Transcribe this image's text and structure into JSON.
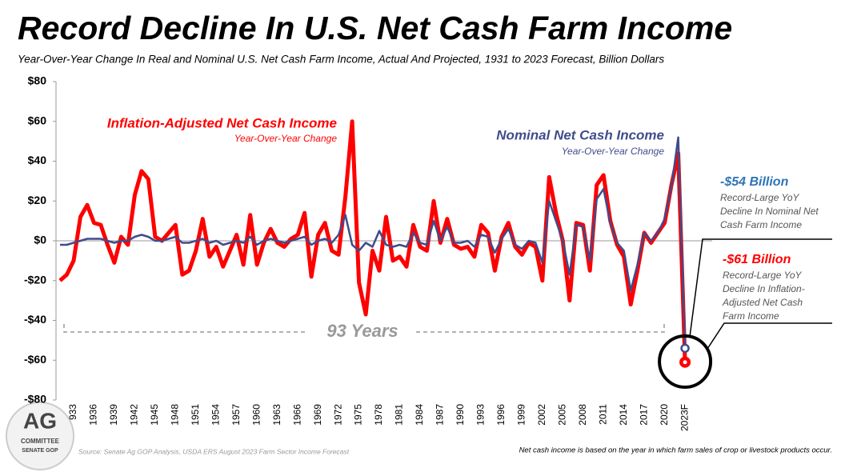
{
  "chart_data": {
    "type": "line",
    "title": "Record Decline In U.S. Net Cash Farm Income",
    "subtitle": "Year-Over-Year Change In Real and Nominal U.S. Net Cash Farm Income, Actual And Projected, 1931 to 2023 Forecast, Billion Dollars",
    "categories": [
      null,
      null,
      "933",
      null,
      null,
      "1936",
      null,
      null,
      "1939",
      null,
      null,
      "1942",
      null,
      null,
      "1945",
      null,
      null,
      "1948",
      null,
      null,
      "1951",
      null,
      null,
      "1954",
      null,
      null,
      "1957",
      null,
      null,
      "1960",
      null,
      null,
      "1963",
      null,
      null,
      "1966",
      null,
      null,
      "1969",
      null,
      null,
      "1972",
      null,
      null,
      "1975",
      null,
      null,
      "1978",
      null,
      null,
      "1981",
      null,
      null,
      "1984",
      null,
      null,
      "1987",
      null,
      null,
      "1990",
      null,
      null,
      "1993",
      null,
      null,
      "1996",
      null,
      null,
      "1999",
      null,
      null,
      "2002",
      null,
      null,
      "2005",
      null,
      null,
      "2008",
      null,
      null,
      "2011",
      null,
      null,
      "2014",
      null,
      null,
      "2017",
      null,
      null,
      "2020",
      null,
      null,
      "2023F"
    ],
    "series": [
      {
        "name": "Inflation-Adjusted Net Cash Income",
        "color": "#ff0000",
        "values": [
          -20,
          -17,
          -10,
          12,
          18,
          9,
          8,
          -2,
          -11,
          2,
          -2,
          23,
          35,
          31,
          2,
          0,
          4,
          8,
          -17,
          -15,
          -5,
          11,
          -8,
          -3,
          -13,
          -5,
          3,
          -12,
          13,
          -12,
          -1,
          6,
          -1,
          -3,
          1,
          3,
          14,
          -18,
          3,
          9,
          -5,
          -7,
          22,
          60,
          -21,
          -37,
          -5,
          -15,
          12,
          -10,
          -8,
          -13,
          8,
          -3,
          -5,
          20,
          -1,
          11,
          -2,
          -4,
          -3,
          -8,
          8,
          4,
          -15,
          2,
          9,
          -3,
          -7,
          -1,
          -3,
          -20,
          32,
          14,
          0,
          -30,
          9,
          8,
          -15,
          28,
          33,
          10,
          -2,
          -8,
          -32,
          -15,
          4,
          -1,
          4,
          9,
          28,
          44,
          -61
        ]
      },
      {
        "name": "Nominal Net Cash Income",
        "color": "#3f4c8c",
        "values": [
          -2,
          -2,
          -1,
          0,
          1,
          1,
          1,
          0,
          -1,
          0,
          0,
          2,
          3,
          2,
          0,
          0,
          1,
          2,
          -1,
          -1,
          0,
          1,
          -1,
          0,
          -2,
          -1,
          0,
          -1,
          2,
          -2,
          0,
          1,
          0,
          -1,
          0,
          1,
          2,
          -2,
          0,
          1,
          -1,
          3,
          13,
          -2,
          -5,
          -1,
          -3,
          5,
          -2,
          -3,
          -2,
          -3,
          4,
          -1,
          -2,
          10,
          0,
          7,
          -1,
          -1,
          0,
          -3,
          3,
          2,
          -6,
          1,
          6,
          -2,
          -4,
          0,
          -1,
          -11,
          20,
          10,
          0,
          -17,
          8,
          7,
          -10,
          21,
          26,
          9,
          -1,
          -5,
          -25,
          -12,
          4,
          0,
          4,
          11,
          27,
          52,
          -54
        ]
      }
    ],
    "ylim": [
      -80,
      80
    ],
    "yticks": [
      {
        "value": -80,
        "label": "-$80"
      },
      {
        "value": -60,
        "label": "-$60"
      },
      {
        "value": -40,
        "label": "-$40"
      },
      {
        "value": -20,
        "label": "-$20"
      },
      {
        "value": 0,
        "label": "$0"
      },
      {
        "value": 20,
        "label": "$20"
      },
      {
        "value": 40,
        "label": "$40"
      },
      {
        "value": 60,
        "label": "$60"
      },
      {
        "value": 80,
        "label": "$80"
      }
    ],
    "series_sublabels": [
      "Year-Over-Year Change",
      "Year-Over-Year Change"
    ],
    "annotations": {
      "nominal": {
        "headline": "-$54 Billion",
        "lines": [
          "Record-Large YoY",
          "Decline In Nominal Net",
          "Cash Farm Income"
        ]
      },
      "real": {
        "headline": "-$61 Billion",
        "lines": [
          "Record-Large YoY",
          "Decline In Inflation-",
          "Adjusted Net Cash",
          "Farm Income"
        ]
      },
      "span": "93 Years"
    },
    "source": "Source: Senate Ag GOP Analysis, USDA ERS August 2023 Farm Sector Income Forecast",
    "note": "Net cash income is based on the year in which farm sales of crop or livestock products occur.",
    "logo": [
      "AG",
      "COMMITTEE",
      "SENATE GOP"
    ]
  }
}
